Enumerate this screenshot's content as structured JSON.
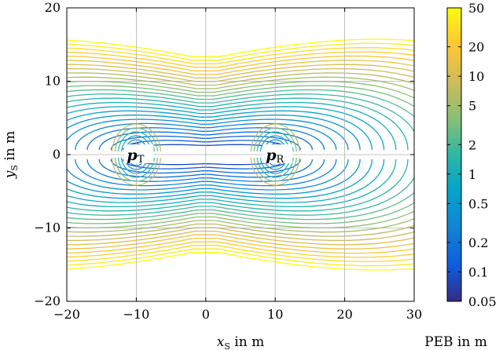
{
  "chart_data": {
    "type": "contour",
    "xlabel": {
      "main": "x",
      "sub": "S",
      "rest": " in m"
    },
    "ylabel": {
      "main": "y",
      "sub": "S",
      "rest": " in m"
    },
    "xlim": [
      -20,
      30
    ],
    "ylim": [
      -20,
      20
    ],
    "xticks": [
      "−20",
      "−10",
      "0",
      "10",
      "20",
      "30"
    ],
    "xtick_values": [
      -20,
      -10,
      0,
      10,
      20,
      30
    ],
    "yticks": [
      "−20",
      "−10",
      "0",
      "10",
      "20"
    ],
    "ytick_values": [
      -20,
      -10,
      0,
      10,
      20
    ],
    "grid": true,
    "points": [
      {
        "name": "p",
        "sub": "T",
        "x": -10,
        "y": 0
      },
      {
        "name": "p",
        "sub": "R",
        "x": 10,
        "y": 0
      }
    ],
    "colorbar": {
      "label": "PEB in m",
      "scale": "log",
      "range": [
        0.05,
        50
      ],
      "tick_values": [
        50,
        20,
        10,
        5,
        2,
        1,
        0.5,
        0.2,
        0.1,
        0.05
      ],
      "tick_labels": [
        "50",
        "20",
        "10",
        "5",
        "2",
        "1",
        "0.5",
        "0.2",
        "0.1",
        "0.05"
      ],
      "colormap": "parula"
    }
  }
}
